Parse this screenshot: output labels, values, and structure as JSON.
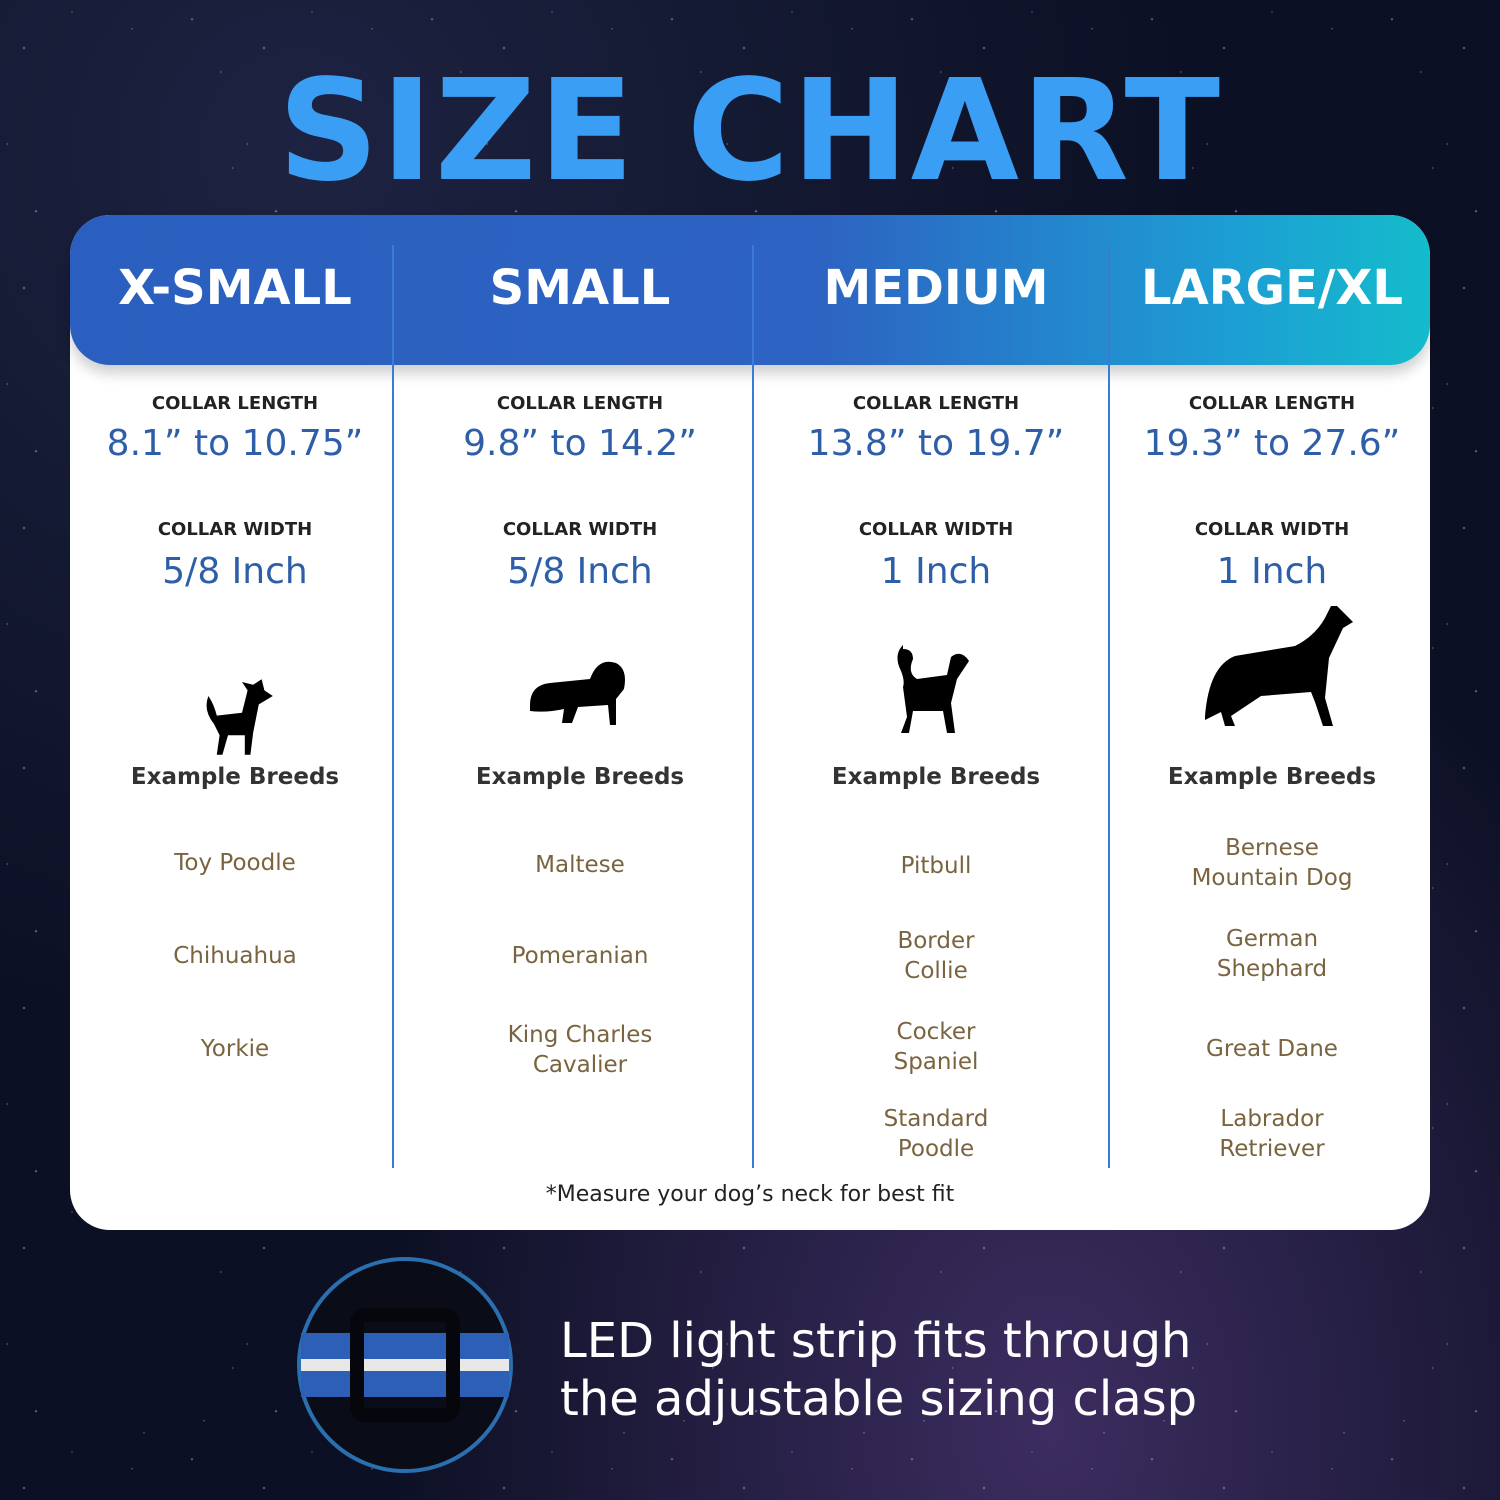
{
  "title": "SIZE CHART",
  "columns": [
    {
      "size": "X-SMALL",
      "length_label": "COLLAR LENGTH",
      "length": "8.1” to 10.75”",
      "width_label": "COLLAR WIDTH",
      "width": "5/8 Inch",
      "breeds_label": "Example Breeds",
      "breeds": [
        "Toy Poodle",
        "Chihuahua",
        "Yorkie"
      ]
    },
    {
      "size": "SMALL",
      "length_label": "COLLAR LENGTH",
      "length": "9.8” to 14.2”",
      "width_label": "COLLAR WIDTH",
      "width": "5/8 Inch",
      "breeds_label": "Example Breeds",
      "breeds": [
        "Maltese",
        "Pomeranian",
        "King Charles\nCavalier"
      ]
    },
    {
      "size": "MEDIUM",
      "length_label": "COLLAR LENGTH",
      "length": "13.8” to 19.7”",
      "width_label": "COLLAR WIDTH",
      "width": "1 Inch",
      "breeds_label": "Example Breeds",
      "breeds": [
        "Pitbull",
        "Border\nCollie",
        "Cocker\nSpaniel",
        "Standard\nPoodle"
      ]
    },
    {
      "size": "LARGE/XL",
      "length_label": "COLLAR LENGTH",
      "length": "19.3” to 27.6”",
      "width_label": "COLLAR WIDTH",
      "width": "1 Inch",
      "breeds_label": "Example Breeds",
      "breeds": [
        "Bernese\nMountain Dog",
        "German\nShephard",
        "Great Dane",
        "Labrador\nRetriever"
      ]
    }
  ],
  "footnote": "*Measure your dog’s neck for best fit",
  "caption": "LED light strip fits through\nthe adjustable sizing clasp"
}
